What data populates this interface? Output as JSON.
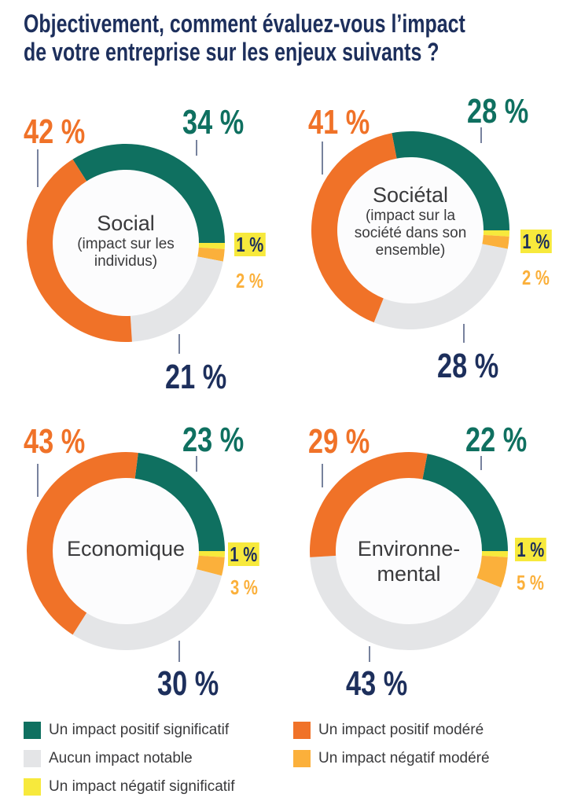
{
  "chart_data": {
    "type": "pie",
    "title": "Objectivement, comment évaluez-vous l’impact de votre entreprise sur les enjeux suivants ?",
    "title_lines": [
      "Objectivement, comment évaluez-vous l’impact",
      "de votre entreprise sur les enjeux suivants ?"
    ],
    "series_names": [
      "Un impact positif significatif",
      "Un impact négatif significatif",
      "Un impact négatif modéré",
      "Aucun impact notable",
      "Un impact positif modéré"
    ],
    "colors": [
      "#0f7060",
      "#f7e93c",
      "#fbb03b",
      "#e4e5e7",
      "#f07228"
    ],
    "label_colors": [
      "#0f7060",
      "#1d2f5c",
      "#fbb03b",
      "#1d2f5c",
      "#f07228"
    ],
    "charts": [
      {
        "name": "Social",
        "subtitle": "(impact sur les individus)",
        "values": [
          34,
          1,
          2,
          21,
          42
        ],
        "labels": [
          "34 %",
          "1 %",
          "2 %",
          "21 %",
          "42 %"
        ]
      },
      {
        "name": "Sociétal",
        "subtitle": "(impact sur la société dans son ensemble)",
        "values": [
          28,
          1,
          2,
          28,
          41
        ],
        "labels": [
          "28 %",
          "1 %",
          "2 %",
          "28 %",
          "41 %"
        ]
      },
      {
        "name": "Economique",
        "subtitle": "",
        "values": [
          23,
          1,
          3,
          30,
          43
        ],
        "labels": [
          "23 %",
          "1 %",
          "3 %",
          "30 %",
          "43 %"
        ]
      },
      {
        "name": "Environne-mental",
        "subtitle": "",
        "values": [
          22,
          1,
          5,
          43,
          29
        ],
        "labels": [
          "22 %",
          "1 %",
          "5 %",
          "43 %",
          "29 %"
        ]
      }
    ],
    "legend": [
      {
        "label": "Un impact positif significatif",
        "color": "#0f7060"
      },
      {
        "label": "Un impact positif modéré",
        "color": "#f07228"
      },
      {
        "label": "Aucun impact notable",
        "color": "#e4e5e7"
      },
      {
        "label": "Un impact négatif modéré",
        "color": "#fbb03b"
      },
      {
        "label": "Un impact négatif significatif",
        "color": "#f7e93c"
      }
    ]
  }
}
